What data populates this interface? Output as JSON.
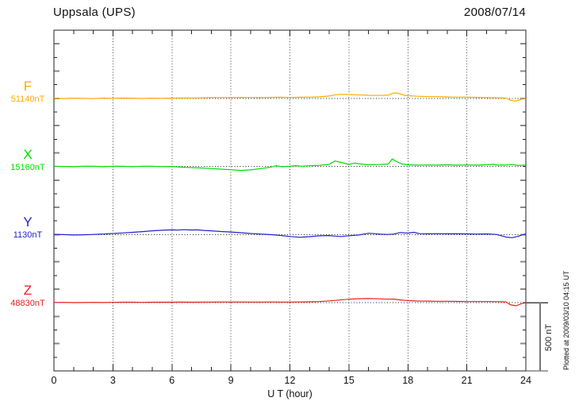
{
  "chart_data": {
    "type": "line",
    "title": "Uppsala (UPS)",
    "date": "2008/07/14",
    "xlabel": "U T (hour)",
    "x_range": [
      0,
      24
    ],
    "x_major_ticks": [
      0,
      3,
      6,
      9,
      12,
      15,
      18,
      21,
      24
    ],
    "x_minor_step_hours": 1,
    "y_tick_step_nT": 100,
    "y_scale_bar": {
      "label": "500 nT",
      "nT": 500
    },
    "plotted_note": "Plotted at 2009/03/10 04:15 UT",
    "grid": "dotted vertical lines at 3-hour intervals; dotted horizontal baseline per component",
    "legend_position": "left margin component labels",
    "series": [
      {
        "name": "F",
        "baseline_label": "51140nT",
        "baseline_nT": 51140,
        "color": "#FFAA00",
        "unit": "nT offset from baseline",
        "points": [
          [
            0,
            0
          ],
          [
            0.5,
            -2
          ],
          [
            1,
            1
          ],
          [
            1.5,
            0
          ],
          [
            2,
            -2
          ],
          [
            2.5,
            2
          ],
          [
            3,
            0
          ],
          [
            3.5,
            2
          ],
          [
            4,
            1
          ],
          [
            4.5,
            -1
          ],
          [
            5,
            1
          ],
          [
            5.5,
            0
          ],
          [
            6,
            2
          ],
          [
            6.5,
            3
          ],
          [
            7,
            2
          ],
          [
            7.5,
            4
          ],
          [
            8,
            5
          ],
          [
            8.5,
            6
          ],
          [
            9,
            5
          ],
          [
            9.5,
            7
          ],
          [
            10,
            6
          ],
          [
            10.5,
            5
          ],
          [
            11,
            7
          ],
          [
            11.5,
            8
          ],
          [
            12,
            6
          ],
          [
            12.5,
            8
          ],
          [
            13,
            9
          ],
          [
            13.5,
            11
          ],
          [
            14,
            17
          ],
          [
            14.3,
            26
          ],
          [
            14.6,
            29
          ],
          [
            15,
            28
          ],
          [
            15.3,
            26
          ],
          [
            15.7,
            24
          ],
          [
            16,
            22
          ],
          [
            16.5,
            21
          ],
          [
            17,
            23
          ],
          [
            17.3,
            40
          ],
          [
            17.5,
            37
          ],
          [
            17.8,
            23
          ],
          [
            18,
            19
          ],
          [
            18.5,
            15
          ],
          [
            19,
            13
          ],
          [
            19.5,
            12
          ],
          [
            20,
            10
          ],
          [
            20.5,
            9
          ],
          [
            21,
            8
          ],
          [
            21.5,
            7
          ],
          [
            22,
            5
          ],
          [
            22.5,
            4
          ],
          [
            23,
            2
          ],
          [
            23.2,
            -13
          ],
          [
            23.4,
            -19
          ],
          [
            23.6,
            -16
          ],
          [
            23.8,
            -6
          ],
          [
            24,
            -2
          ]
        ]
      },
      {
        "name": "X",
        "baseline_label": "15160nT",
        "baseline_nT": 15160,
        "color": "#00DC00",
        "unit": "nT offset from baseline",
        "points": [
          [
            0,
            2
          ],
          [
            0.5,
            0
          ],
          [
            1,
            -2
          ],
          [
            1.5,
            2
          ],
          [
            2,
            1
          ],
          [
            2.5,
            -2
          ],
          [
            3,
            2
          ],
          [
            3.5,
            1
          ],
          [
            4,
            -1
          ],
          [
            4.5,
            2
          ],
          [
            5,
            1
          ],
          [
            5.5,
            -1
          ],
          [
            6,
            0
          ],
          [
            6.5,
            -5
          ],
          [
            7,
            -8
          ],
          [
            7.5,
            -11
          ],
          [
            8,
            -15
          ],
          [
            8.5,
            -20
          ],
          [
            9,
            -24
          ],
          [
            9.5,
            -29
          ],
          [
            10,
            -25
          ],
          [
            10.5,
            -16
          ],
          [
            11,
            -6
          ],
          [
            11.3,
            5
          ],
          [
            11.6,
            -2
          ],
          [
            12,
            1
          ],
          [
            12.3,
            6
          ],
          [
            12.6,
            2
          ],
          [
            13,
            5
          ],
          [
            13.5,
            8
          ],
          [
            14,
            16
          ],
          [
            14.3,
            40
          ],
          [
            14.6,
            30
          ],
          [
            15,
            15
          ],
          [
            15.3,
            25
          ],
          [
            15.6,
            18
          ],
          [
            16,
            12
          ],
          [
            16.5,
            14
          ],
          [
            17,
            18
          ],
          [
            17.2,
            55
          ],
          [
            17.4,
            38
          ],
          [
            17.7,
            18
          ],
          [
            18,
            12
          ],
          [
            18.5,
            10
          ],
          [
            19,
            11
          ],
          [
            19.5,
            10
          ],
          [
            20,
            12
          ],
          [
            20.5,
            10
          ],
          [
            21,
            11
          ],
          [
            21.5,
            10
          ],
          [
            22,
            12
          ],
          [
            22.3,
            16
          ],
          [
            22.6,
            10
          ],
          [
            23,
            11
          ],
          [
            23.3,
            14
          ],
          [
            23.6,
            8
          ],
          [
            24,
            10
          ]
        ]
      },
      {
        "name": "Y",
        "baseline_label": "1130nT",
        "baseline_nT": 1130,
        "color": "#2222CC",
        "unit": "nT offset from baseline",
        "points": [
          [
            0,
            2
          ],
          [
            0.5,
            0
          ],
          [
            1,
            -3
          ],
          [
            1.5,
            -1
          ],
          [
            2,
            1
          ],
          [
            2.5,
            4
          ],
          [
            3,
            8
          ],
          [
            3.5,
            12
          ],
          [
            4,
            17
          ],
          [
            4.5,
            22
          ],
          [
            5,
            28
          ],
          [
            5.5,
            32
          ],
          [
            6,
            35
          ],
          [
            6.3,
            33
          ],
          [
            6.6,
            36
          ],
          [
            7,
            34
          ],
          [
            7.3,
            35
          ],
          [
            7.6,
            31
          ],
          [
            8,
            28
          ],
          [
            8.5,
            23
          ],
          [
            9,
            19
          ],
          [
            9.5,
            14
          ],
          [
            10,
            8
          ],
          [
            10.5,
            4
          ],
          [
            11,
            0
          ],
          [
            11.5,
            -6
          ],
          [
            12,
            -14
          ],
          [
            12.5,
            -19
          ],
          [
            13,
            -15
          ],
          [
            13.5,
            -9
          ],
          [
            14,
            -7
          ],
          [
            14.3,
            -11
          ],
          [
            14.6,
            -14
          ],
          [
            15,
            -8
          ],
          [
            15.5,
            -3
          ],
          [
            16,
            10
          ],
          [
            16.3,
            7
          ],
          [
            16.6,
            3
          ],
          [
            17,
            1
          ],
          [
            17.3,
            4
          ],
          [
            17.6,
            15
          ],
          [
            18,
            11
          ],
          [
            18.3,
            17
          ],
          [
            18.6,
            7
          ],
          [
            19,
            6
          ],
          [
            19.5,
            7
          ],
          [
            20,
            6
          ],
          [
            20.5,
            6
          ],
          [
            21,
            5
          ],
          [
            21.5,
            4
          ],
          [
            22,
            5
          ],
          [
            22.5,
            1
          ],
          [
            23,
            -18
          ],
          [
            23.3,
            -23
          ],
          [
            23.6,
            -13
          ],
          [
            23.8,
            -3
          ],
          [
            24,
            6
          ]
        ]
      },
      {
        "name": "Z",
        "baseline_label": "48830nT",
        "baseline_nT": 48830,
        "color": "#E52020",
        "unit": "nT offset from baseline",
        "points": [
          [
            0,
            2
          ],
          [
            0.5,
            3
          ],
          [
            1,
            1
          ],
          [
            1.5,
            2
          ],
          [
            2,
            3
          ],
          [
            2.5,
            2
          ],
          [
            3,
            3
          ],
          [
            3.5,
            4
          ],
          [
            4,
            4
          ],
          [
            4.5,
            3
          ],
          [
            5,
            4
          ],
          [
            5.5,
            4
          ],
          [
            6,
            4
          ],
          [
            6.5,
            5
          ],
          [
            7,
            4
          ],
          [
            7.5,
            5
          ],
          [
            8,
            5
          ],
          [
            8.5,
            6
          ],
          [
            9,
            5
          ],
          [
            9.5,
            6
          ],
          [
            10,
            5
          ],
          [
            10.5,
            5
          ],
          [
            11,
            6
          ],
          [
            11.5,
            5
          ],
          [
            12,
            5
          ],
          [
            12.5,
            6
          ],
          [
            13,
            7
          ],
          [
            13.5,
            9
          ],
          [
            14,
            14
          ],
          [
            14.5,
            20
          ],
          [
            15,
            26
          ],
          [
            15.5,
            30
          ],
          [
            16,
            31
          ],
          [
            16.5,
            29
          ],
          [
            17,
            26
          ],
          [
            17.3,
            27
          ],
          [
            17.6,
            21
          ],
          [
            18,
            16
          ],
          [
            18.5,
            13
          ],
          [
            19,
            12
          ],
          [
            19.5,
            11
          ],
          [
            20,
            11
          ],
          [
            20.5,
            10
          ],
          [
            21,
            9
          ],
          [
            21.5,
            9
          ],
          [
            22,
            9
          ],
          [
            22.5,
            8
          ],
          [
            23,
            6
          ],
          [
            23.2,
            -14
          ],
          [
            23.5,
            -22
          ],
          [
            23.8,
            -6
          ],
          [
            24,
            0
          ]
        ]
      }
    ]
  }
}
